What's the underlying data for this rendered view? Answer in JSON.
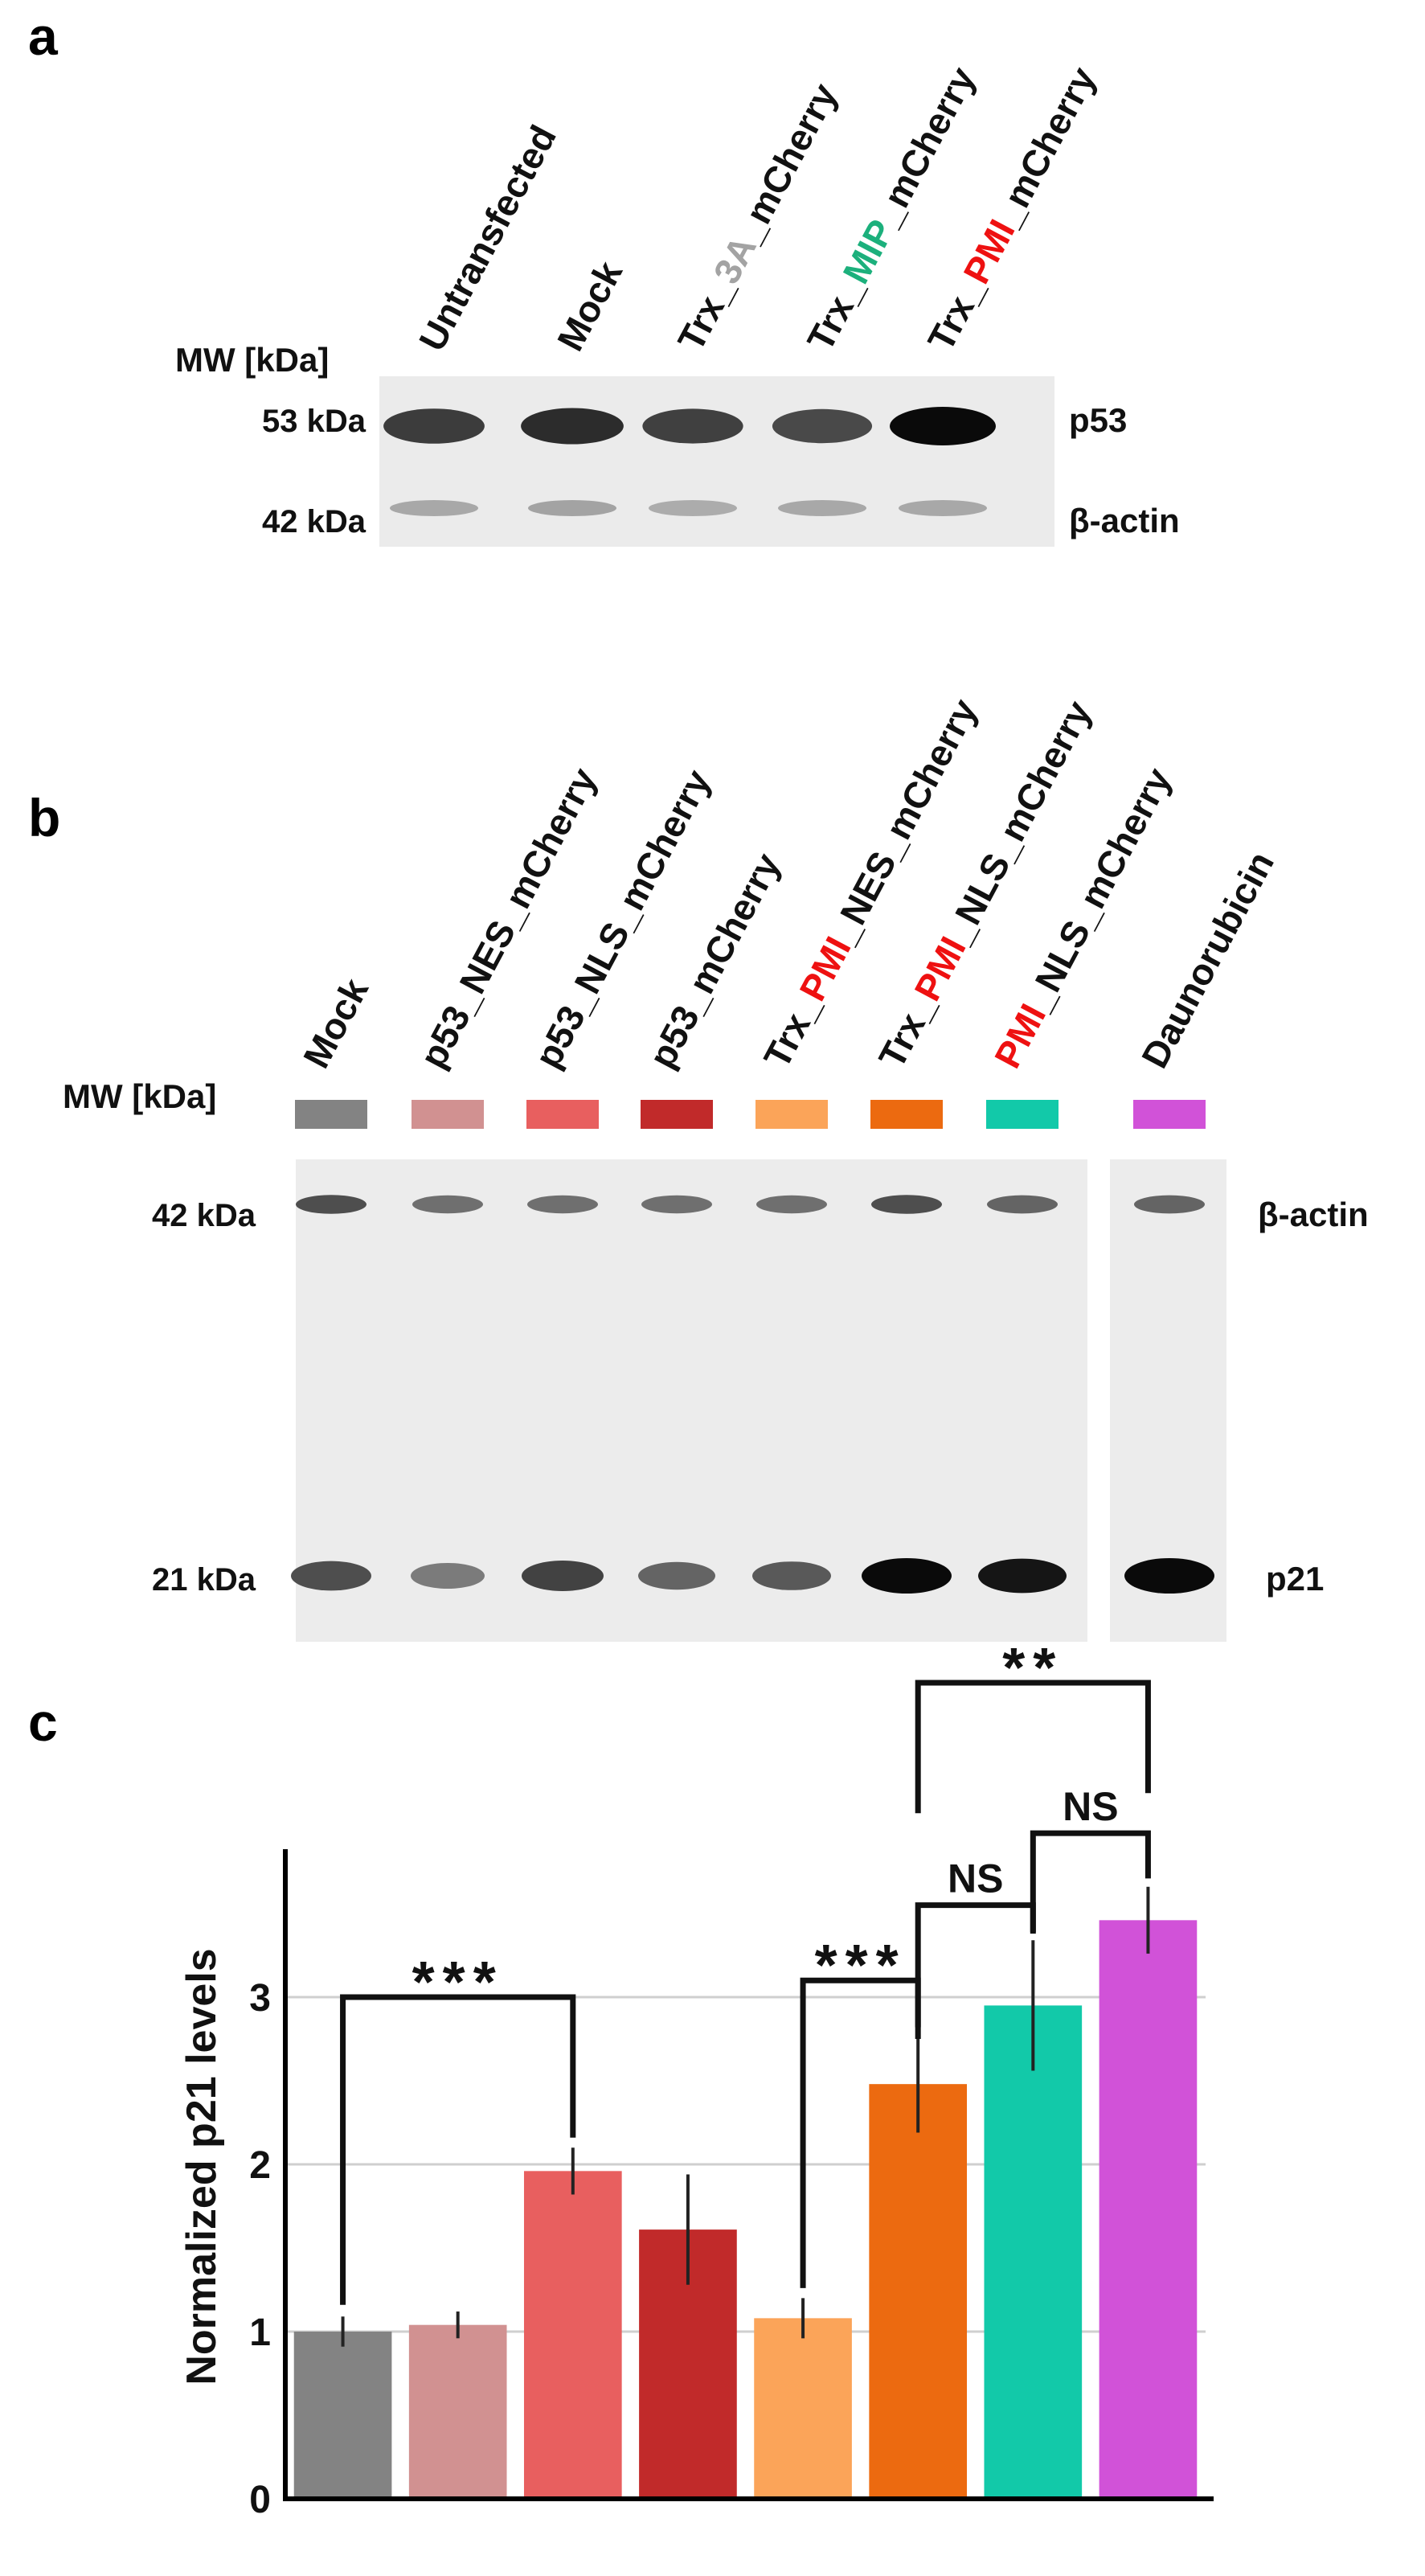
{
  "panel_a": {
    "letter": "a",
    "mw_label": "MW [kDa]",
    "lanes": [
      {
        "parts": [
          {
            "t": "Untransfected"
          }
        ]
      },
      {
        "parts": [
          {
            "t": "Mock"
          }
        ]
      },
      {
        "parts": [
          {
            "t": "Trx_"
          },
          {
            "t": "3A",
            "c": "#a3a3a3"
          },
          {
            "t": "_mCherry"
          }
        ]
      },
      {
        "parts": [
          {
            "t": "Trx_"
          },
          {
            "t": "MIP",
            "c": "#1cb07c"
          },
          {
            "t": "_mCherry"
          }
        ]
      },
      {
        "parts": [
          {
            "t": "Trx_"
          },
          {
            "t": "PMI",
            "c": "#ee1111"
          },
          {
            "t": "_mCherry"
          }
        ]
      }
    ],
    "markers": [
      {
        "label": "53 kDa"
      },
      {
        "label": "42 kDa"
      }
    ],
    "proteins": [
      "p53",
      "β-actin"
    ],
    "band_intensity": {
      "p53": [
        0.78,
        0.85,
        0.76,
        0.72,
        1.0
      ],
      "actin": [
        0.3,
        0.32,
        0.28,
        0.3,
        0.3
      ]
    }
  },
  "panel_b": {
    "letter": "b",
    "mw_label": "MW [kDa]",
    "lanes": [
      {
        "parts": [
          {
            "t": "Mock"
          }
        ],
        "color": "#838383"
      },
      {
        "parts": [
          {
            "t": "p53_NES_mCherry"
          }
        ],
        "color": "#d19191"
      },
      {
        "parts": [
          {
            "t": "p53_NLS_mCherry"
          }
        ],
        "color": "#e85f5f"
      },
      {
        "parts": [
          {
            "t": "p53_mCherry"
          }
        ],
        "color": "#c12a2a"
      },
      {
        "parts": [
          {
            "t": "Trx_"
          },
          {
            "t": "PMI",
            "c": "#ee1111"
          },
          {
            "t": "_NES_mCherry"
          }
        ],
        "color": "#fba459"
      },
      {
        "parts": [
          {
            "t": "Trx_"
          },
          {
            "t": "PMI",
            "c": "#ee1111"
          },
          {
            "t": "_NLS_mCherry"
          }
        ],
        "color": "#ec6a10"
      },
      {
        "parts": [
          {
            "t": "PMI",
            "c": "#ee1111"
          },
          {
            "t": "_NLS_mCherry"
          }
        ],
        "color": "#12c9a9"
      },
      {
        "parts": [
          {
            "t": "Daunorubicin"
          }
        ],
        "color": "#d152d8"
      }
    ],
    "markers": [
      {
        "label": "42 kDa"
      },
      {
        "label": "21 kDa"
      }
    ],
    "proteins": [
      "β-actin",
      "p21"
    ],
    "band_intensity": {
      "actin": [
        0.7,
        0.55,
        0.55,
        0.55,
        0.55,
        0.7,
        0.6,
        0.6
      ],
      "p21": [
        0.7,
        0.5,
        0.75,
        0.6,
        0.65,
        1.0,
        0.95,
        1.0
      ]
    }
  },
  "panel_c": {
    "letter": "c"
  },
  "chart_data": {
    "type": "bar",
    "categories": [
      "Mock",
      "p53_NES_mCherry",
      "p53_NLS_mCherry",
      "p53_mCherry",
      "Trx_PMI_NES_mCherry",
      "Trx_PMI_NLS_mCherry",
      "PMI_NLS_mCherry",
      "Daunorubicin"
    ],
    "values": [
      1.0,
      1.04,
      1.96,
      1.61,
      1.08,
      2.48,
      2.95,
      3.46
    ],
    "errors": [
      0.09,
      0.08,
      0.14,
      0.33,
      0.12,
      0.29,
      0.39,
      0.2
    ],
    "colors": [
      "#838383",
      "#d19191",
      "#e85f5f",
      "#c12a2a",
      "#fba459",
      "#ec6a10",
      "#12c9a9",
      "#d152d8"
    ],
    "ylabel": "Normalized p21 levels",
    "xlabel": "",
    "ylim": [
      0,
      4
    ],
    "yticks": [
      0,
      1,
      2,
      3
    ],
    "grid": true,
    "significance": [
      {
        "a": 0,
        "b": 2,
        "label": "***"
      },
      {
        "a": 4,
        "b": 5,
        "label": "***"
      },
      {
        "a": 5,
        "b": 6,
        "label": "NS"
      },
      {
        "a": 6,
        "b": 7,
        "label": "NS"
      },
      {
        "a": 5,
        "b": 7,
        "label": "**"
      }
    ]
  }
}
